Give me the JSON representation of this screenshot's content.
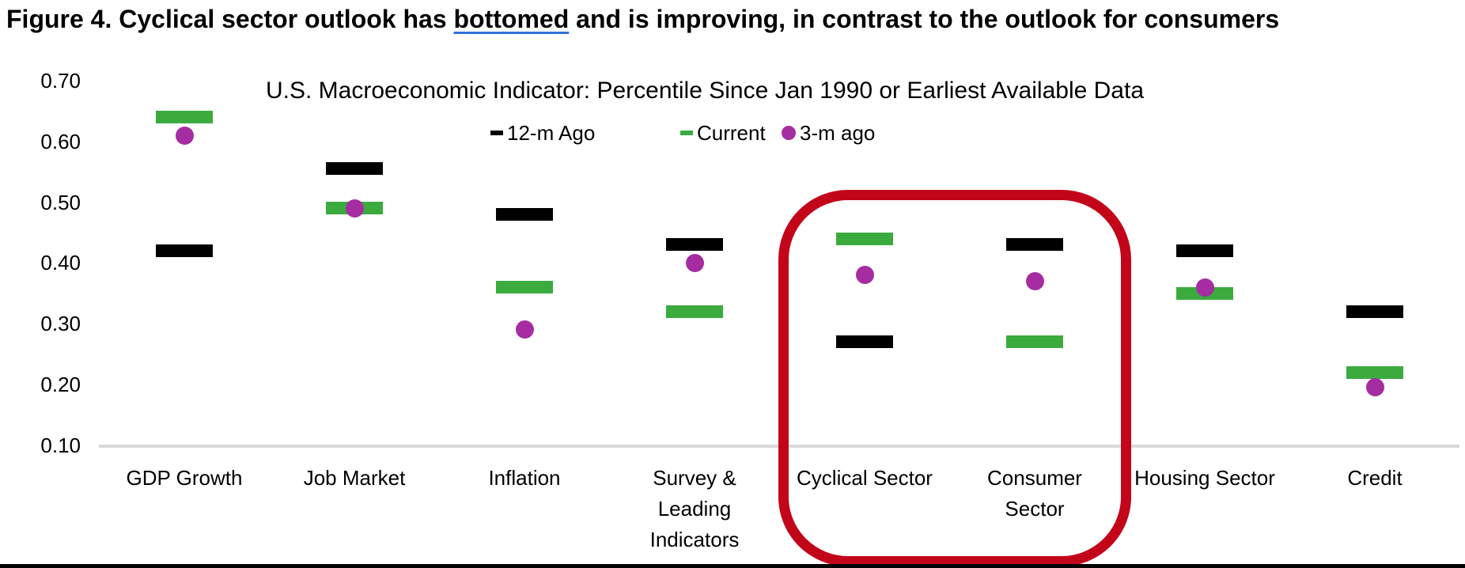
{
  "figure_title": {
    "prefix": "Figure 4. Cyclical sector outlook has ",
    "underlined": "bottomed",
    "suffix": " and is improving, in contrast to the outlook for consumers"
  },
  "chart_data": {
    "type": "scatter",
    "title": "U.S. Macroeconomic Indicator: Percentile Since Jan 1990 or Earliest Available Data",
    "categories": [
      "GDP Growth",
      "Job Market",
      "Inflation",
      "Survey & Leading Indicators",
      "Cyclical Sector",
      "Consumer Sector",
      "Housing Sector",
      "Credit"
    ],
    "category_label_lines": [
      [
        "GDP Growth"
      ],
      [
        "Job Market"
      ],
      [
        "Inflation"
      ],
      [
        "Survey &",
        "Leading",
        "Indicators"
      ],
      [
        "Cyclical Sector"
      ],
      [
        "Consumer",
        "Sector"
      ],
      [
        "Housing Sector"
      ],
      [
        "Credit"
      ]
    ],
    "series": [
      {
        "name": "12-m Ago",
        "marker": "dash",
        "color": "#000000",
        "values": [
          0.42,
          0.555,
          0.48,
          0.43,
          0.27,
          0.43,
          0.42,
          0.32
        ]
      },
      {
        "name": "Current",
        "marker": "dash",
        "color": "#3bab3e",
        "values": [
          0.64,
          0.49,
          0.36,
          0.32,
          0.44,
          0.27,
          0.35,
          0.22
        ]
      },
      {
        "name": "3-m ago",
        "marker": "circle",
        "color": "#a62ca2",
        "values": [
          0.61,
          0.49,
          0.29,
          0.4,
          0.38,
          0.37,
          0.36,
          0.195
        ]
      }
    ],
    "ylim": [
      0.1,
      0.7
    ],
    "ytick_labels": [
      "0.70",
      "0.60",
      "0.50",
      "0.40",
      "0.30",
      "0.20",
      "0.10"
    ],
    "grid": "off",
    "legend_position": "top-center",
    "annotation": {
      "shape": "rounded-rectangle-outline",
      "color": "#c3051a",
      "highlighted_categories": [
        "Cyclical Sector",
        "Consumer Sector"
      ]
    },
    "colors": {
      "series_12m": "#000000",
      "series_current": "#3bab3e",
      "series_3m": "#a62ca2",
      "axis_line": "#d9d9d9",
      "underline_accent": "#3470d6",
      "highlight_red": "#c3051a"
    }
  }
}
